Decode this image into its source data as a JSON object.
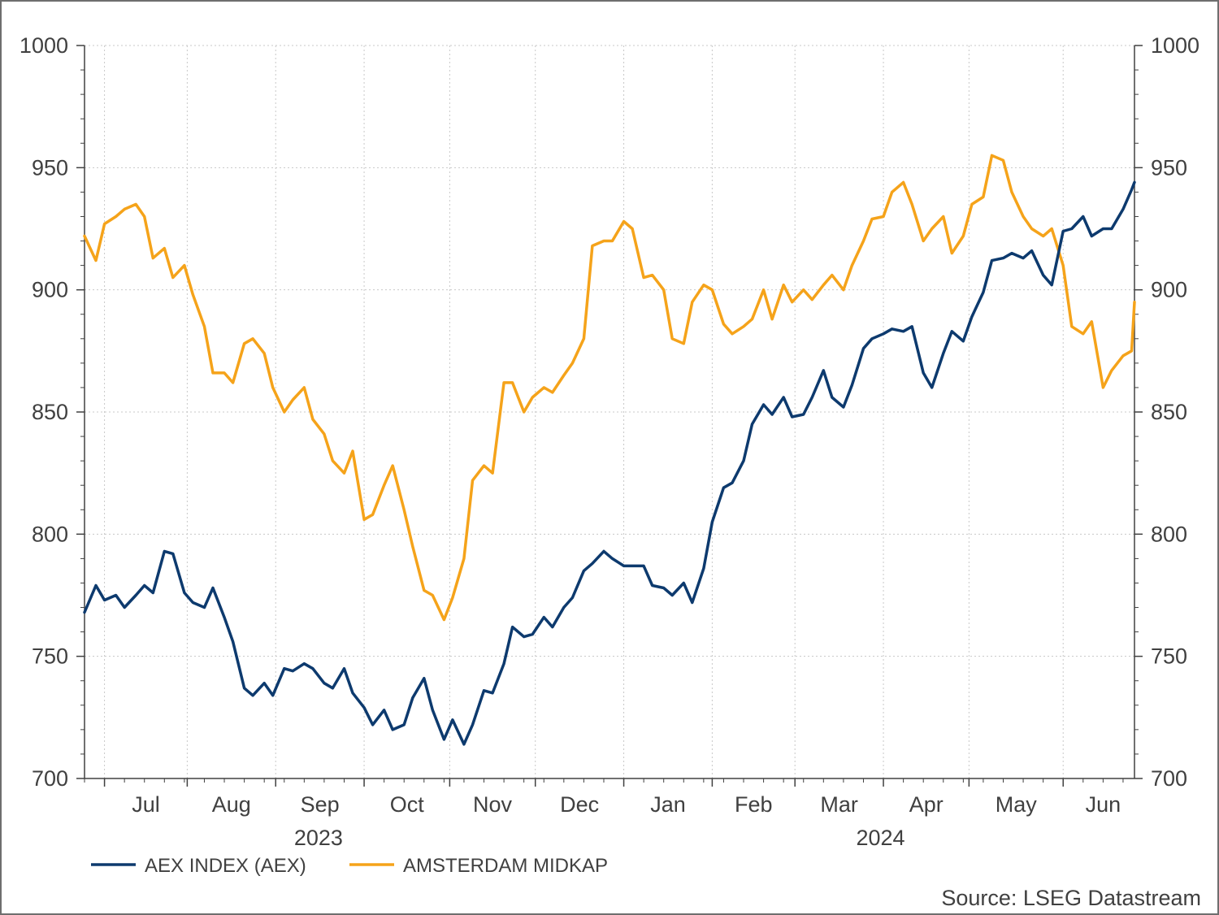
{
  "chart_data": {
    "type": "line",
    "title": "",
    "xlabel": "",
    "ylabel": "",
    "ylim": [
      700,
      1000
    ],
    "yticks": [
      "700",
      "750",
      "800",
      "850",
      "900",
      "950",
      "1000"
    ],
    "xlim": [
      "2023-06-26",
      "2024-06-28"
    ],
    "grid": true,
    "legend_position": "bottom-left",
    "month_ticks": [
      {
        "label": "Jul",
        "date": "2023-07-01",
        "bound": "2023-07-03"
      },
      {
        "label": "Aug",
        "date": "2023-08-01",
        "bound": "2023-08-01"
      },
      {
        "label": "Sep",
        "date": "2023-09-01",
        "bound": "2023-09-01"
      },
      {
        "label": "Oct",
        "date": "2023-10-01",
        "bound": "2023-10-02"
      },
      {
        "label": "Nov",
        "date": "2023-11-01",
        "bound": "2023-11-01"
      },
      {
        "label": "Dec",
        "date": "2023-12-01",
        "bound": "2023-12-01"
      },
      {
        "label": "Jan",
        "date": "2024-01-01",
        "bound": "2024-01-01"
      },
      {
        "label": "Feb",
        "date": "2024-02-01",
        "bound": "2024-02-01"
      },
      {
        "label": "Mar",
        "date": "2024-03-01",
        "bound": "2024-03-01"
      },
      {
        "label": "Apr",
        "date": "2024-04-01",
        "bound": "2024-04-01"
      },
      {
        "label": "May",
        "date": "2024-05-01",
        "bound": "2024-05-01"
      },
      {
        "label": "Jun",
        "date": "2024-06-01",
        "bound": "2024-06-03"
      }
    ],
    "year_labels": [
      {
        "label": "2023",
        "date": "2023-09-16"
      },
      {
        "label": "2024",
        "date": "2024-03-31"
      }
    ],
    "series": [
      {
        "name": "AEX INDEX (AEX)",
        "color": "#0d3a6e",
        "points": [
          [
            "2023-06-26",
            768
          ],
          [
            "2023-06-30",
            779
          ],
          [
            "2023-07-03",
            773
          ],
          [
            "2023-07-07",
            775
          ],
          [
            "2023-07-10",
            770
          ],
          [
            "2023-07-14",
            775
          ],
          [
            "2023-07-17",
            779
          ],
          [
            "2023-07-20",
            776
          ],
          [
            "2023-07-24",
            793
          ],
          [
            "2023-07-27",
            792
          ],
          [
            "2023-07-31",
            776
          ],
          [
            "2023-08-03",
            772
          ],
          [
            "2023-08-07",
            770
          ],
          [
            "2023-08-10",
            778
          ],
          [
            "2023-08-14",
            766
          ],
          [
            "2023-08-17",
            756
          ],
          [
            "2023-08-21",
            737
          ],
          [
            "2023-08-24",
            734
          ],
          [
            "2023-08-28",
            739
          ],
          [
            "2023-08-31",
            734
          ],
          [
            "2023-09-04",
            745
          ],
          [
            "2023-09-07",
            744
          ],
          [
            "2023-09-11",
            747
          ],
          [
            "2023-09-14",
            745
          ],
          [
            "2023-09-18",
            739
          ],
          [
            "2023-09-21",
            737
          ],
          [
            "2023-09-25",
            745
          ],
          [
            "2023-09-28",
            735
          ],
          [
            "2023-10-02",
            729
          ],
          [
            "2023-10-05",
            722
          ],
          [
            "2023-10-09",
            728
          ],
          [
            "2023-10-12",
            720
          ],
          [
            "2023-10-16",
            722
          ],
          [
            "2023-10-19",
            733
          ],
          [
            "2023-10-23",
            741
          ],
          [
            "2023-10-26",
            728
          ],
          [
            "2023-10-30",
            716
          ],
          [
            "2023-11-02",
            724
          ],
          [
            "2023-11-06",
            714
          ],
          [
            "2023-11-09",
            722
          ],
          [
            "2023-11-13",
            736
          ],
          [
            "2023-11-16",
            735
          ],
          [
            "2023-11-20",
            747
          ],
          [
            "2023-11-23",
            762
          ],
          [
            "2023-11-27",
            758
          ],
          [
            "2023-11-30",
            759
          ],
          [
            "2023-12-04",
            766
          ],
          [
            "2023-12-07",
            762
          ],
          [
            "2023-12-11",
            770
          ],
          [
            "2023-12-14",
            774
          ],
          [
            "2023-12-18",
            785
          ],
          [
            "2023-12-21",
            788
          ],
          [
            "2023-12-25",
            793
          ],
          [
            "2023-12-28",
            790
          ],
          [
            "2024-01-01",
            787
          ],
          [
            "2024-01-04",
            787
          ],
          [
            "2024-01-08",
            787
          ],
          [
            "2024-01-11",
            779
          ],
          [
            "2024-01-15",
            778
          ],
          [
            "2024-01-18",
            775
          ],
          [
            "2024-01-22",
            780
          ],
          [
            "2024-01-25",
            772
          ],
          [
            "2024-01-29",
            786
          ],
          [
            "2024-02-01",
            805
          ],
          [
            "2024-02-05",
            819
          ],
          [
            "2024-02-08",
            821
          ],
          [
            "2024-02-12",
            830
          ],
          [
            "2024-02-15",
            845
          ],
          [
            "2024-02-19",
            853
          ],
          [
            "2024-02-22",
            849
          ],
          [
            "2024-02-26",
            856
          ],
          [
            "2024-02-29",
            848
          ],
          [
            "2024-03-04",
            849
          ],
          [
            "2024-03-07",
            856
          ],
          [
            "2024-03-11",
            867
          ],
          [
            "2024-03-14",
            856
          ],
          [
            "2024-03-18",
            852
          ],
          [
            "2024-03-21",
            861
          ],
          [
            "2024-03-25",
            876
          ],
          [
            "2024-03-28",
            880
          ],
          [
            "2024-04-01",
            882
          ],
          [
            "2024-04-04",
            884
          ],
          [
            "2024-04-08",
            883
          ],
          [
            "2024-04-11",
            885
          ],
          [
            "2024-04-15",
            866
          ],
          [
            "2024-04-18",
            860
          ],
          [
            "2024-04-22",
            874
          ],
          [
            "2024-04-25",
            883
          ],
          [
            "2024-04-29",
            879
          ],
          [
            "2024-05-02",
            889
          ],
          [
            "2024-05-06",
            899
          ],
          [
            "2024-05-09",
            912
          ],
          [
            "2024-05-13",
            913
          ],
          [
            "2024-05-16",
            915
          ],
          [
            "2024-05-20",
            913
          ],
          [
            "2024-05-23",
            916
          ],
          [
            "2024-05-27",
            906
          ],
          [
            "2024-05-30",
            902
          ],
          [
            "2024-06-03",
            924
          ],
          [
            "2024-06-06",
            925
          ],
          [
            "2024-06-10",
            930
          ],
          [
            "2024-06-13",
            922
          ],
          [
            "2024-06-17",
            925
          ],
          [
            "2024-06-20",
            925
          ],
          [
            "2024-06-24",
            933
          ],
          [
            "2024-06-27",
            941
          ],
          [
            "2024-06-28",
            944
          ]
        ]
      },
      {
        "name": "AMSTERDAM MIDKAP",
        "color": "#f5a31a",
        "points": [
          [
            "2023-06-26",
            922
          ],
          [
            "2023-06-30",
            912
          ],
          [
            "2023-07-03",
            927
          ],
          [
            "2023-07-07",
            930
          ],
          [
            "2023-07-10",
            933
          ],
          [
            "2023-07-14",
            935
          ],
          [
            "2023-07-17",
            930
          ],
          [
            "2023-07-20",
            913
          ],
          [
            "2023-07-24",
            917
          ],
          [
            "2023-07-27",
            905
          ],
          [
            "2023-07-31",
            910
          ],
          [
            "2023-08-03",
            898
          ],
          [
            "2023-08-07",
            885
          ],
          [
            "2023-08-10",
            866
          ],
          [
            "2023-08-14",
            866
          ],
          [
            "2023-08-17",
            862
          ],
          [
            "2023-08-21",
            878
          ],
          [
            "2023-08-24",
            880
          ],
          [
            "2023-08-28",
            874
          ],
          [
            "2023-08-31",
            860
          ],
          [
            "2023-09-04",
            850
          ],
          [
            "2023-09-07",
            855
          ],
          [
            "2023-09-11",
            860
          ],
          [
            "2023-09-14",
            847
          ],
          [
            "2023-09-18",
            841
          ],
          [
            "2023-09-21",
            830
          ],
          [
            "2023-09-25",
            825
          ],
          [
            "2023-09-28",
            834
          ],
          [
            "2023-10-02",
            806
          ],
          [
            "2023-10-05",
            808
          ],
          [
            "2023-10-09",
            820
          ],
          [
            "2023-10-12",
            828
          ],
          [
            "2023-10-16",
            810
          ],
          [
            "2023-10-19",
            795
          ],
          [
            "2023-10-23",
            777
          ],
          [
            "2023-10-26",
            775
          ],
          [
            "2023-10-30",
            765
          ],
          [
            "2023-11-02",
            774
          ],
          [
            "2023-11-06",
            790
          ],
          [
            "2023-11-09",
            822
          ],
          [
            "2023-11-13",
            828
          ],
          [
            "2023-11-16",
            825
          ],
          [
            "2023-11-20",
            862
          ],
          [
            "2023-11-23",
            862
          ],
          [
            "2023-11-27",
            850
          ],
          [
            "2023-11-30",
            856
          ],
          [
            "2023-12-04",
            860
          ],
          [
            "2023-12-07",
            858
          ],
          [
            "2023-12-11",
            865
          ],
          [
            "2023-12-14",
            870
          ],
          [
            "2023-12-18",
            880
          ],
          [
            "2023-12-21",
            918
          ],
          [
            "2023-12-25",
            920
          ],
          [
            "2023-12-28",
            920
          ],
          [
            "2024-01-01",
            928
          ],
          [
            "2024-01-04",
            925
          ],
          [
            "2024-01-08",
            905
          ],
          [
            "2024-01-11",
            906
          ],
          [
            "2024-01-15",
            900
          ],
          [
            "2024-01-18",
            880
          ],
          [
            "2024-01-22",
            878
          ],
          [
            "2024-01-25",
            895
          ],
          [
            "2024-01-29",
            902
          ],
          [
            "2024-02-01",
            900
          ],
          [
            "2024-02-05",
            886
          ],
          [
            "2024-02-08",
            882
          ],
          [
            "2024-02-12",
            885
          ],
          [
            "2024-02-15",
            888
          ],
          [
            "2024-02-19",
            900
          ],
          [
            "2024-02-22",
            888
          ],
          [
            "2024-02-26",
            902
          ],
          [
            "2024-02-29",
            895
          ],
          [
            "2024-03-04",
            900
          ],
          [
            "2024-03-07",
            896
          ],
          [
            "2024-03-11",
            902
          ],
          [
            "2024-03-14",
            906
          ],
          [
            "2024-03-18",
            900
          ],
          [
            "2024-03-21",
            910
          ],
          [
            "2024-03-25",
            920
          ],
          [
            "2024-03-28",
            929
          ],
          [
            "2024-04-01",
            930
          ],
          [
            "2024-04-04",
            940
          ],
          [
            "2024-04-08",
            944
          ],
          [
            "2024-04-11",
            935
          ],
          [
            "2024-04-15",
            920
          ],
          [
            "2024-04-18",
            925
          ],
          [
            "2024-04-22",
            930
          ],
          [
            "2024-04-25",
            915
          ],
          [
            "2024-04-29",
            922
          ],
          [
            "2024-05-02",
            935
          ],
          [
            "2024-05-06",
            938
          ],
          [
            "2024-05-09",
            955
          ],
          [
            "2024-05-13",
            953
          ],
          [
            "2024-05-16",
            940
          ],
          [
            "2024-05-20",
            930
          ],
          [
            "2024-05-23",
            925
          ],
          [
            "2024-05-27",
            922
          ],
          [
            "2024-05-30",
            925
          ],
          [
            "2024-06-03",
            910
          ],
          [
            "2024-06-06",
            885
          ],
          [
            "2024-06-10",
            882
          ],
          [
            "2024-06-13",
            887
          ],
          [
            "2024-06-17",
            860
          ],
          [
            "2024-06-20",
            867
          ],
          [
            "2024-06-24",
            873
          ],
          [
            "2024-06-27",
            875
          ],
          [
            "2024-06-28",
            895
          ]
        ]
      }
    ],
    "source": "Source: LSEG Datastream"
  }
}
